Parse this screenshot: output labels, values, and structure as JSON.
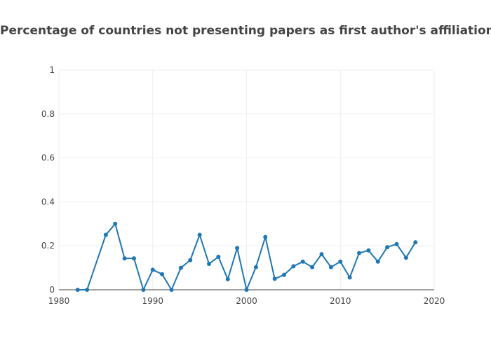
{
  "chart_data": {
    "type": "line",
    "title": "Percentage of countries not presenting papers as first author's affiliation",
    "xlabel": "",
    "ylabel": "",
    "xlim": [
      1980,
      2020
    ],
    "ylim": [
      0,
      1
    ],
    "x_ticks": [
      1980,
      1990,
      2000,
      2010,
      2020
    ],
    "y_ticks": [
      0,
      0.2,
      0.4,
      0.6,
      0.8,
      1
    ],
    "y_tick_labels": [
      "0",
      "0.2",
      "0.4",
      "0.6",
      "0.8",
      "1"
    ],
    "grid": true,
    "legend": "none",
    "series": [
      {
        "color": "#1f77b4",
        "x": [
          1982,
          1983,
          1985,
          1986,
          1987,
          1988,
          1989,
          1990,
          1991,
          1992,
          1993,
          1994,
          1995,
          1996,
          1997,
          1998,
          1999,
          2000,
          2001,
          2002,
          2003,
          2004,
          2005,
          2006,
          2007,
          2008,
          2009,
          2010,
          2011,
          2012,
          2013,
          2014,
          2015,
          2016,
          2017,
          2018
        ],
        "y": [
          0,
          0,
          0.25,
          0.3,
          0.143,
          0.143,
          0,
          0.091,
          0.071,
          0,
          0.1,
          0.135,
          0.25,
          0.118,
          0.15,
          0.048,
          0.19,
          0,
          0.103,
          0.24,
          0.05,
          0.068,
          0.107,
          0.128,
          0.103,
          0.162,
          0.103,
          0.128,
          0.056,
          0.167,
          0.179,
          0.128,
          0.194,
          0.208,
          0.146,
          0.216
        ]
      }
    ]
  }
}
